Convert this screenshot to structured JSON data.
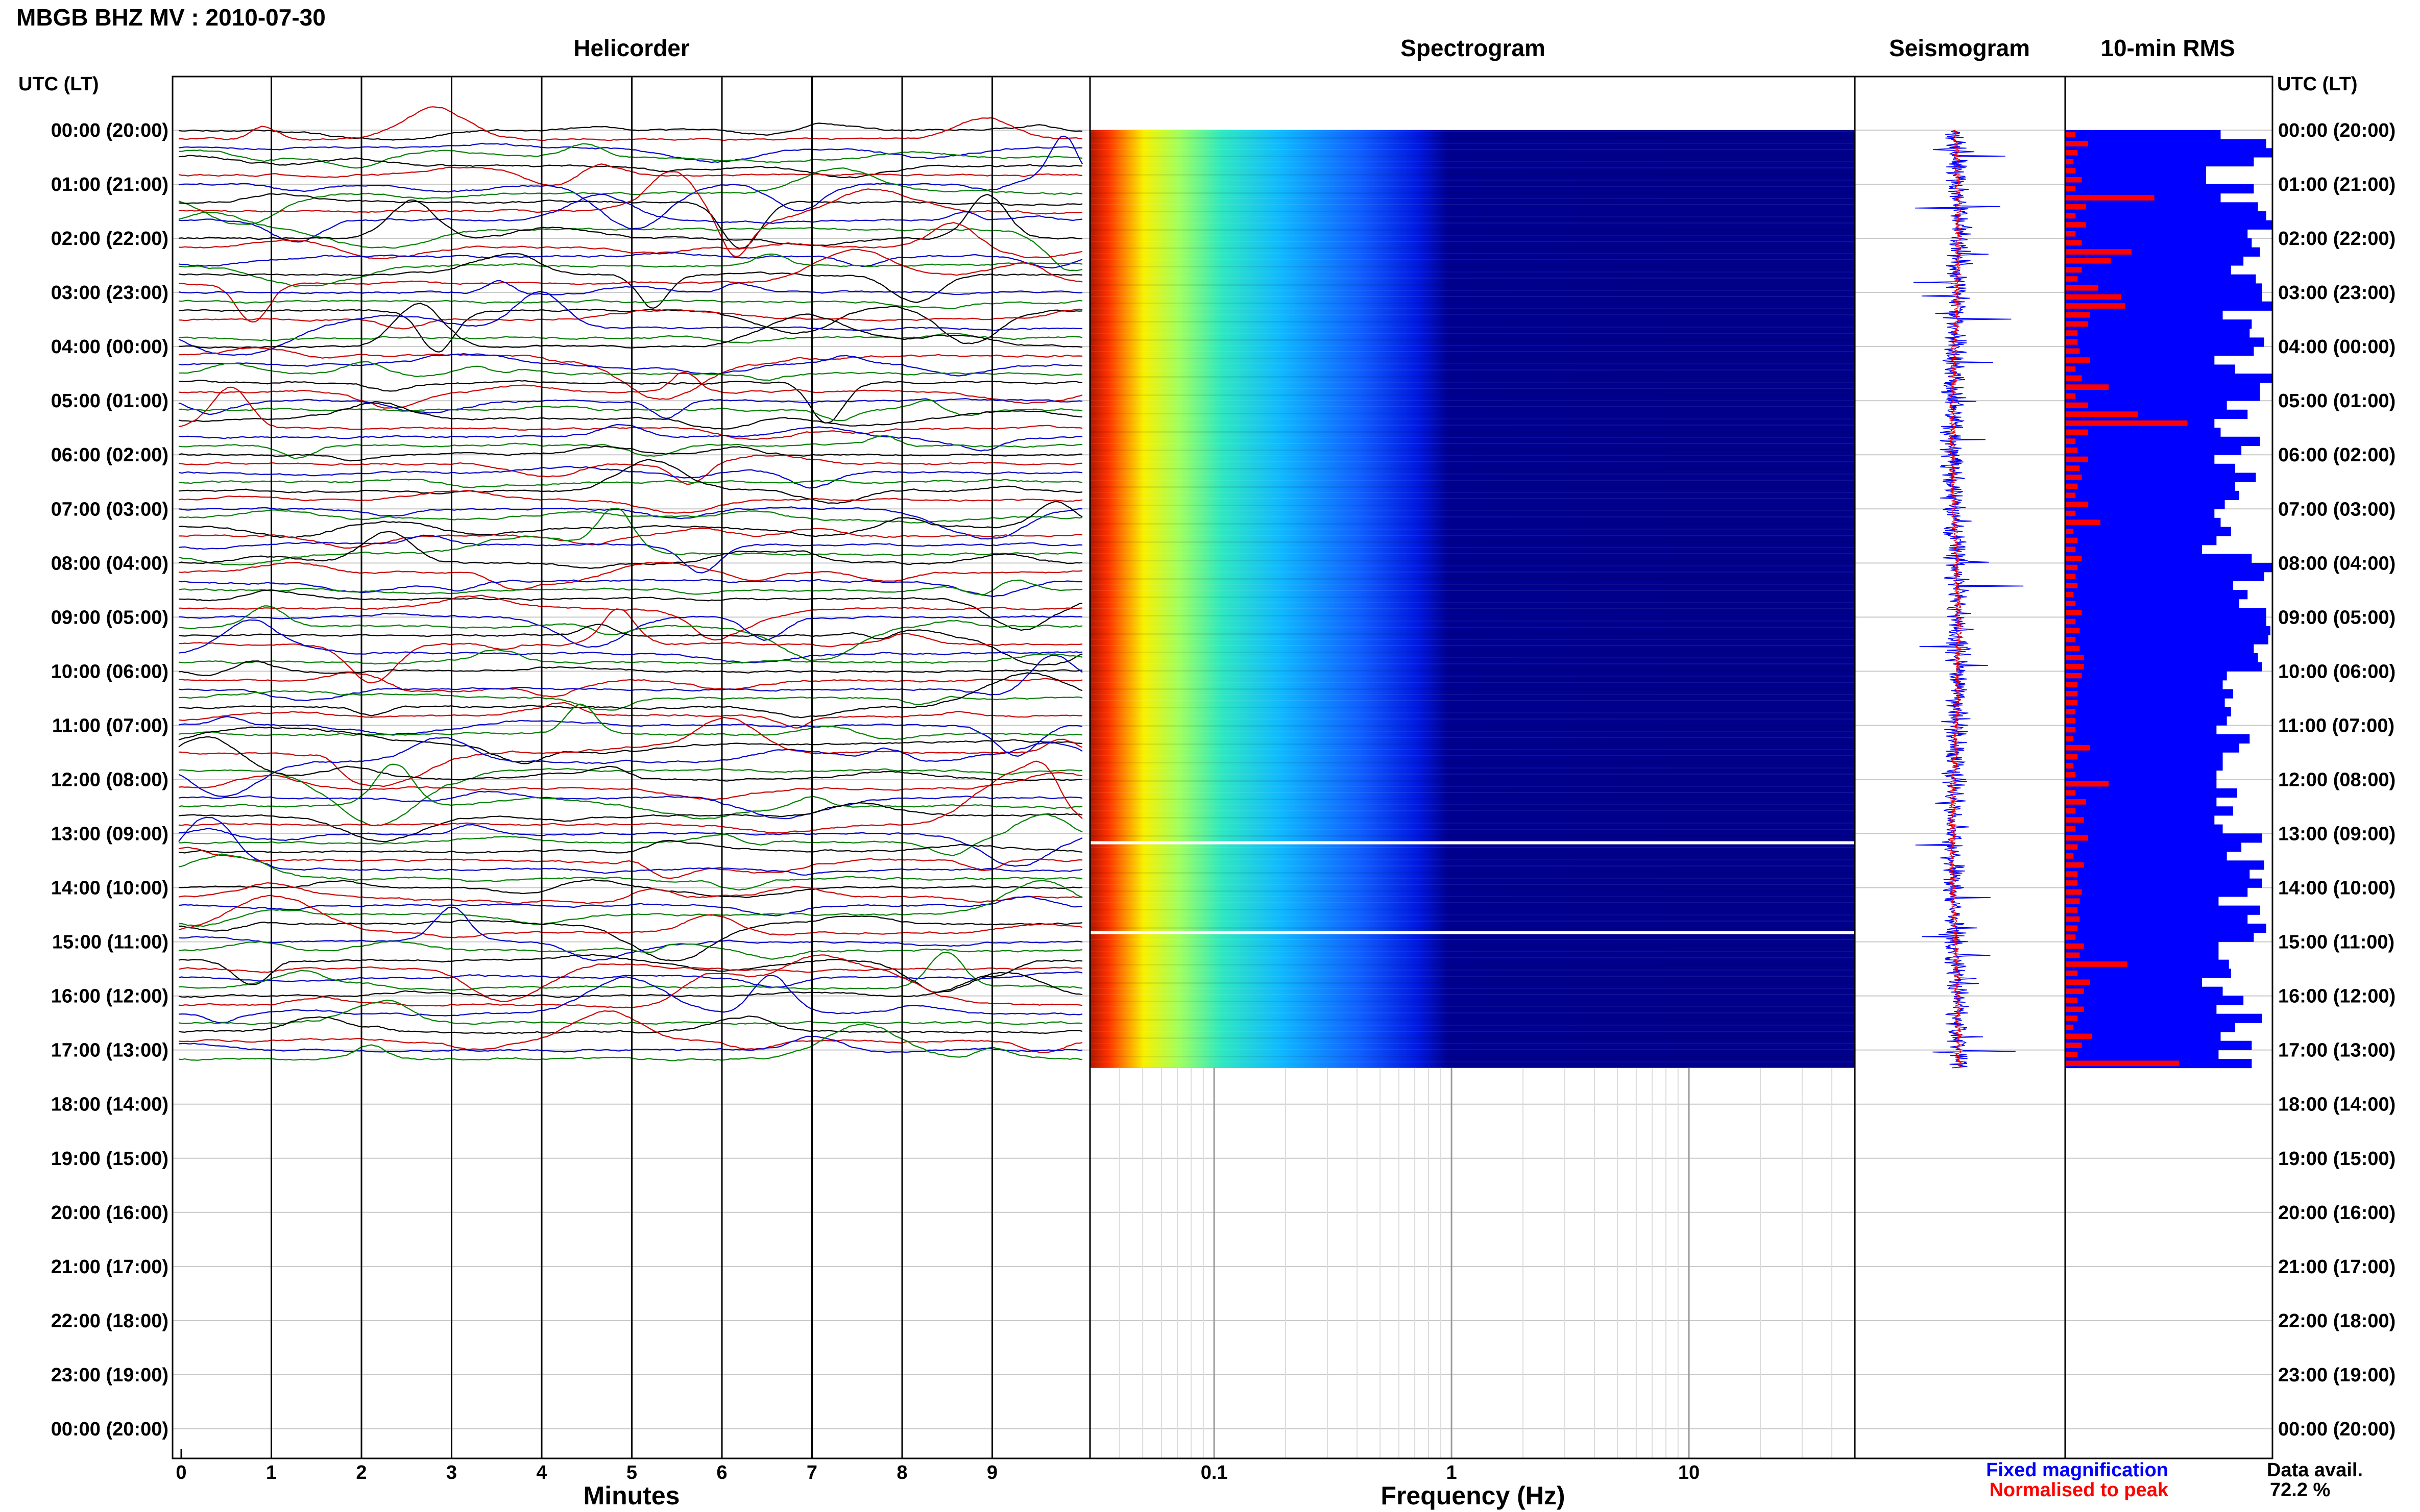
{
  "figure_title": "MBGB BHZ MV : 2010-07-30",
  "panel_titles": {
    "helicorder": "Helicorder",
    "spectrogram": "Spectrogram",
    "seismogram": "Seismogram",
    "rms": "10-min RMS"
  },
  "time_axis_header": "UTC (LT)",
  "time_labels": [
    "00:00 (20:00)",
    "01:00 (21:00)",
    "02:00 (22:00)",
    "03:00 (23:00)",
    "04:00 (00:00)",
    "05:00 (01:00)",
    "06:00 (02:00)",
    "07:00 (03:00)",
    "08:00 (04:00)",
    "09:00 (05:00)",
    "10:00 (06:00)",
    "11:00 (07:00)",
    "12:00 (08:00)",
    "13:00 (09:00)",
    "14:00 (10:00)",
    "15:00 (11:00)",
    "16:00 (12:00)",
    "17:00 (13:00)",
    "18:00 (14:00)",
    "19:00 (15:00)",
    "20:00 (16:00)",
    "21:00 (17:00)",
    "22:00 (18:00)",
    "23:00 (19:00)",
    "00:00 (20:00)"
  ],
  "legend": {
    "fixed": "Fixed magnification",
    "normalised": "Normalised to peak",
    "fixed_color": "#0000ff",
    "normalised_color": "#ff0000"
  },
  "data_availability": {
    "label": "Data avail.",
    "value": "72.2 %"
  },
  "colors": {
    "trace_cycle": [
      "#000000",
      "#cc0000",
      "#0000cc",
      "#008000"
    ],
    "spectrogram_background": "#00008b",
    "rms_fixed": "#0000ff",
    "rms_normalised": "#ff0000"
  },
  "chart_data": [
    {
      "type": "line",
      "title": "Helicorder",
      "xlabel": "Minutes",
      "x_ticks": [
        "0",
        "1",
        "2",
        "3",
        "4",
        "5",
        "6",
        "7",
        "8",
        "9"
      ],
      "xlim": [
        0,
        10
      ],
      "rows_per_hour": 6,
      "hours_with_data": 17.33,
      "row_color_cycle": [
        "black",
        "red",
        "blue",
        "green"
      ]
    },
    {
      "type": "heatmap",
      "title": "Spectrogram",
      "xlabel": "Frequency (Hz)",
      "x_scale": "log",
      "xlim": [
        0.03,
        50
      ],
      "x_ticks": [
        "0.1",
        "1",
        "10"
      ],
      "colormap": "jet",
      "hours_with_data": 17.33,
      "gaps_utc_hours": [
        13.17,
        14.83
      ]
    },
    {
      "type": "line",
      "title": "Seismogram",
      "series": [
        {
          "name": "Fixed magnification"
        },
        {
          "name": "Normalised to peak"
        }
      ],
      "hours_with_data": 17.33
    },
    {
      "type": "bar",
      "title": "10-min RMS",
      "orientation": "horizontal",
      "series": [
        {
          "name": "Fixed magnification",
          "values": [
            0.75,
            0.97,
            1.0,
            0.91,
            0.68,
            0.68,
            0.91,
            0.75,
            0.93,
            0.97,
            1.0,
            0.88,
            0.9,
            0.94,
            0.86,
            0.8,
            0.92,
            0.95,
            0.95,
            1.0,
            0.76,
            0.9,
            0.89,
            0.96,
            0.91,
            0.72,
            0.82,
            1.0,
            0.94,
            0.94,
            0.78,
            0.88,
            0.72,
            0.75,
            0.94,
            0.85,
            0.72,
            0.82,
            0.92,
            0.82,
            0.84,
            0.77,
            0.72,
            0.75,
            0.8,
            0.73,
            0.66,
            0.9,
            1.0,
            0.96,
            0.81,
            0.88,
            0.84,
            0.97,
            0.97,
            0.99,
            0.98,
            0.91,
            0.93,
            0.95,
            0.78,
            0.76,
            0.81,
            0.77,
            0.8,
            0.78,
            0.73,
            0.89,
            0.84,
            0.76,
            0.76,
            0.73,
            0.73,
            0.83,
            0.73,
            0.81,
            0.72,
            0.76,
            0.95,
            0.85,
            0.78,
            0.96,
            0.89,
            0.95,
            0.88,
            0.74,
            0.94,
            0.88,
            0.97,
            0.91,
            0.74,
            0.74,
            0.79,
            0.8,
            0.66,
            0.76,
            0.86,
            0.73,
            0.95,
            0.82,
            0.75,
            0.9,
            0.74,
            0.9
          ]
        },
        {
          "name": "Normalised to peak",
          "values": [
            0.05,
            0.11,
            0.06,
            0.04,
            0.05,
            0.08,
            0.05,
            0.43,
            0.1,
            0.05,
            0.1,
            0.05,
            0.08,
            0.32,
            0.22,
            0.08,
            0.06,
            0.16,
            0.27,
            0.29,
            0.12,
            0.11,
            0.06,
            0.06,
            0.07,
            0.12,
            0.05,
            0.08,
            0.21,
            0.05,
            0.11,
            0.35,
            0.59,
            0.11,
            0.05,
            0.06,
            0.11,
            0.07,
            0.08,
            0.06,
            0.05,
            0.11,
            0.05,
            0.17,
            0.04,
            0.06,
            0.05,
            0.08,
            0.06,
            0.05,
            0.06,
            0.04,
            0.05,
            0.08,
            0.05,
            0.07,
            0.05,
            0.07,
            0.09,
            0.09,
            0.08,
            0.06,
            0.06,
            0.06,
            0.05,
            0.05,
            0.05,
            0.04,
            0.12,
            0.06,
            0.04,
            0.05,
            0.21,
            0.05,
            0.1,
            0.05,
            0.09,
            0.05,
            0.11,
            0.06,
            0.04,
            0.09,
            0.06,
            0.06,
            0.08,
            0.07,
            0.06,
            0.07,
            0.06,
            0.05,
            0.09,
            0.07,
            0.3,
            0.06,
            0.12,
            0.09,
            0.06,
            0.09,
            0.06,
            0.04,
            0.13,
            0.08,
            0.06,
            0.55
          ]
        }
      ],
      "hours_with_data": 17.33
    }
  ]
}
